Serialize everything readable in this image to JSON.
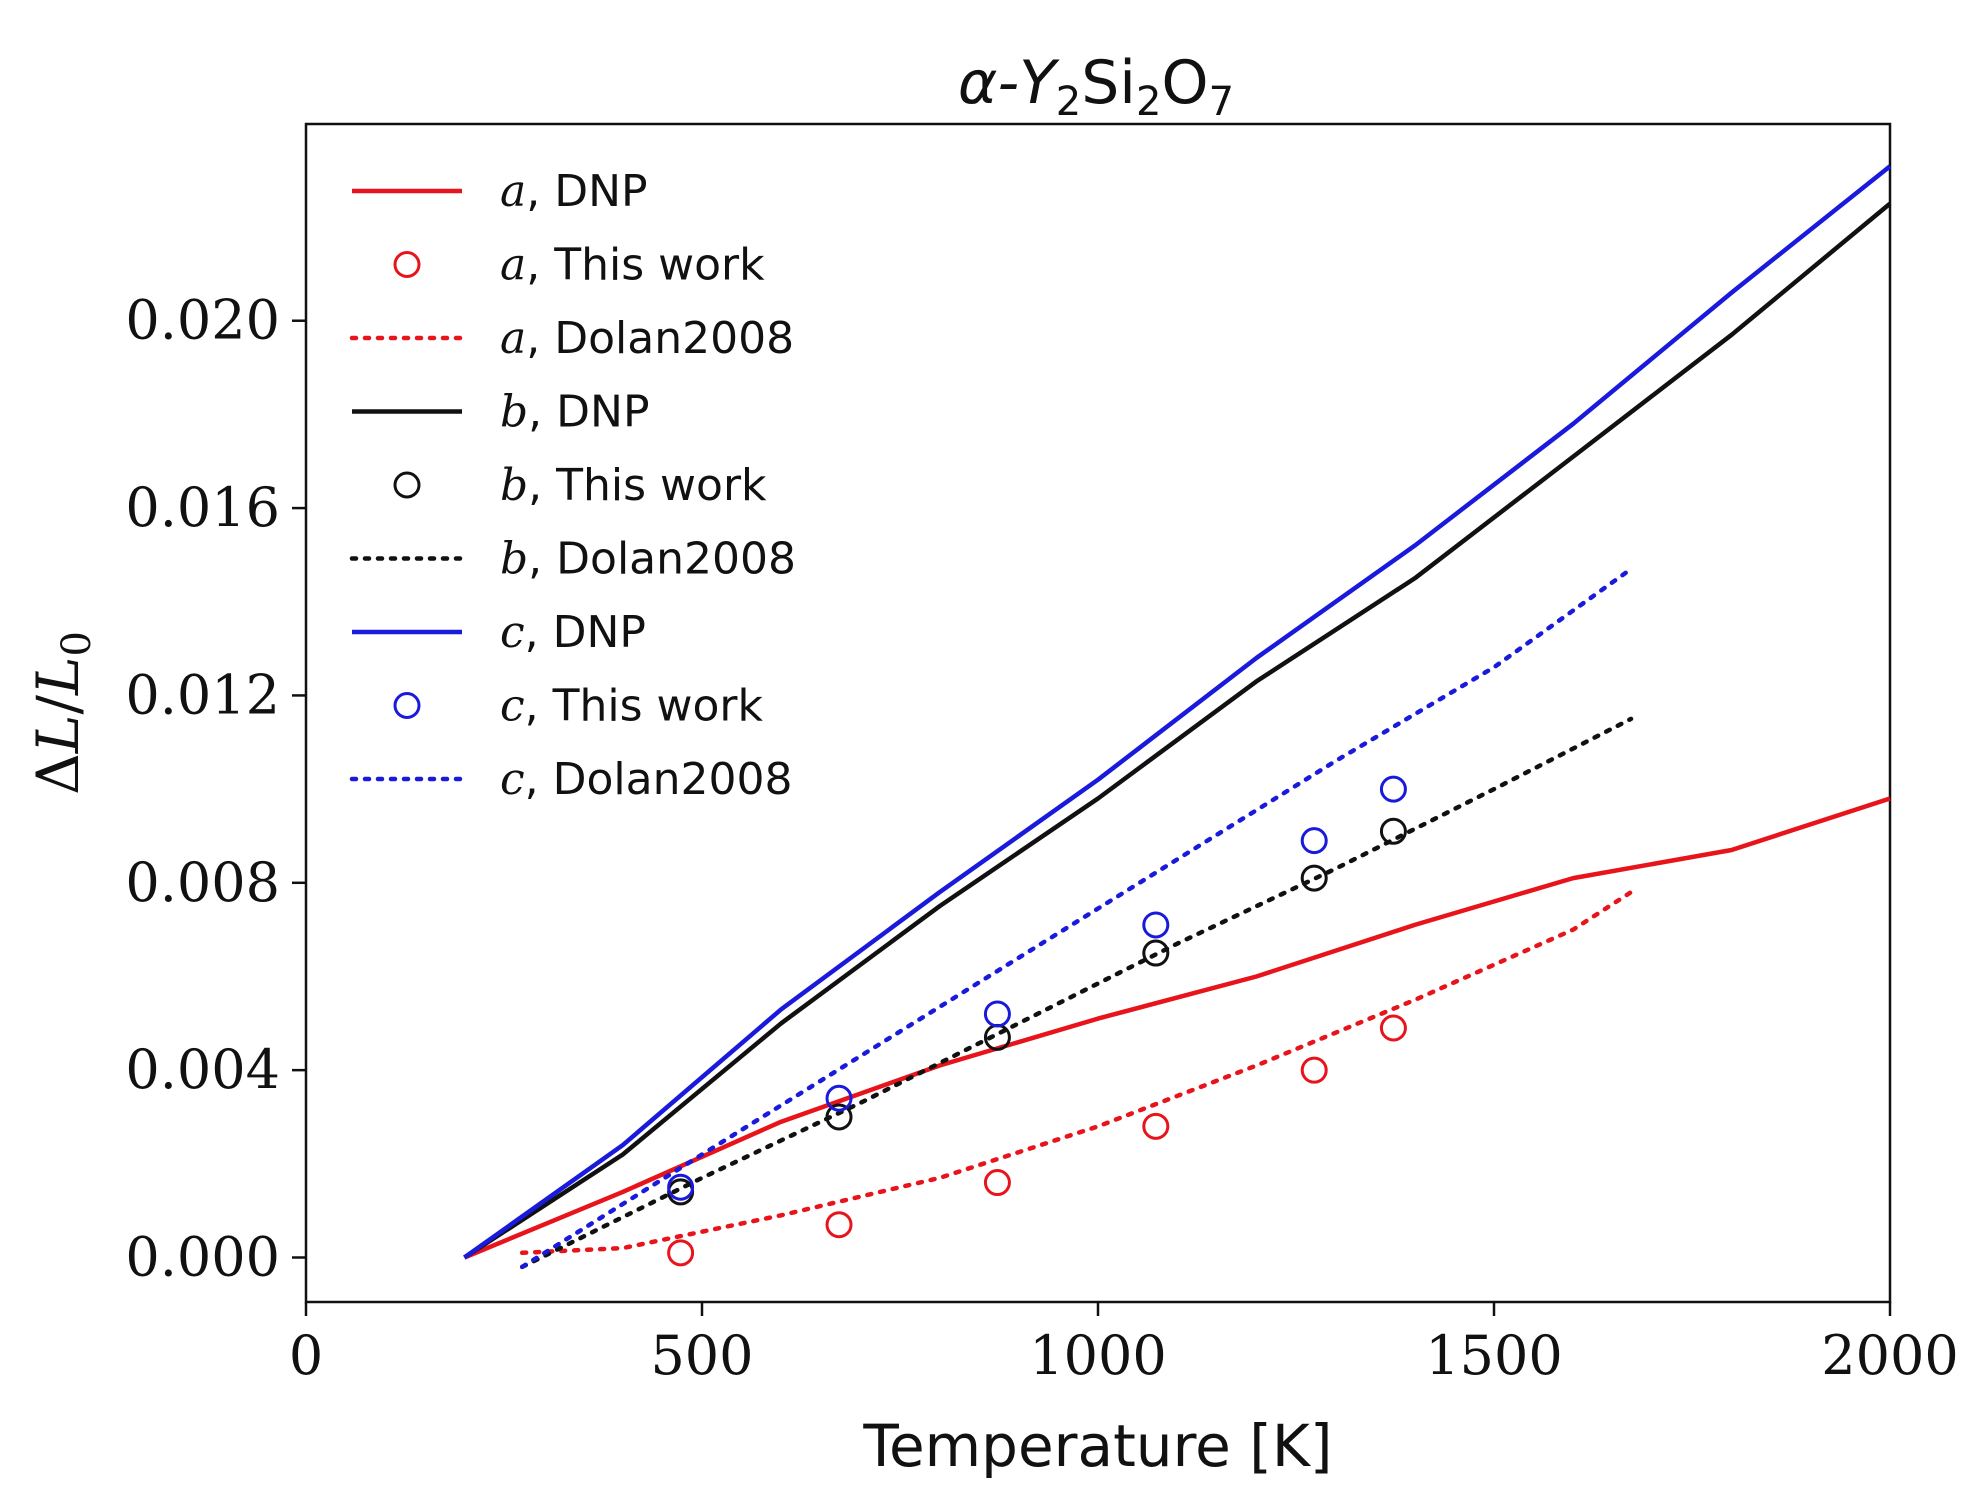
{
  "chart_data": {
    "type": "line",
    "title": {
      "prefix": "α-Y",
      "sub1": "2",
      "mid": "Si",
      "sub2": "2",
      "mid2": "O",
      "sub3": "7"
    },
    "xlabel": "Temperature [K]",
    "ylabel": {
      "delta": "Δ",
      "L": "L",
      "slash": "/",
      "L0": "L",
      "sub": "0"
    },
    "xlim": [
      0,
      2000
    ],
    "ylim": [
      -0.00095,
      0.0242
    ],
    "x_ticks": [
      {
        "value": 0,
        "label": "0"
      },
      {
        "value": 500,
        "label": "500"
      },
      {
        "value": 1000,
        "label": "1000"
      },
      {
        "value": 1500,
        "label": "1500"
      },
      {
        "value": 2000,
        "label": "2000"
      }
    ],
    "y_ticks": [
      {
        "value": 0.0,
        "label": "0.000"
      },
      {
        "value": 0.004,
        "label": "0.004"
      },
      {
        "value": 0.008,
        "label": "0.008"
      },
      {
        "value": 0.012,
        "label": "0.012"
      },
      {
        "value": 0.016,
        "label": "0.016"
      },
      {
        "value": 0.02,
        "label": "0.020"
      }
    ],
    "grid": false,
    "legend_position": "top-left",
    "series": [
      {
        "id": "a-dnp",
        "axis": "a",
        "source": ", DNP",
        "kind": "solid",
        "color": "#e8141c",
        "x": [
          200,
          400,
          600,
          800,
          1000,
          1200,
          1400,
          1600,
          1800,
          2000
        ],
        "y": [
          0.0,
          0.0014,
          0.0029,
          0.0041,
          0.0051,
          0.006,
          0.0071,
          0.0081,
          0.0087,
          0.0098
        ]
      },
      {
        "id": "a-this",
        "axis": "a",
        "source": ", This work",
        "kind": "marker",
        "color": "#e8141c",
        "x": [
          473,
          673,
          873,
          1073,
          1273,
          1373
        ],
        "y": [
          0.0001,
          0.0007,
          0.0016,
          0.0028,
          0.004,
          0.0049
        ]
      },
      {
        "id": "a-dolan",
        "axis": "a",
        "source": ", Dolan2008",
        "kind": "dotted",
        "color": "#e8141c",
        "x": [
          273,
          400,
          600,
          800,
          1000,
          1200,
          1400,
          1600,
          1673
        ],
        "y": [
          0.0001,
          0.0002,
          0.0009,
          0.0017,
          0.0028,
          0.0041,
          0.0055,
          0.007,
          0.0078
        ]
      },
      {
        "id": "b-dnp",
        "axis": "b",
        "source": ", DNP",
        "kind": "solid",
        "color": "#111111",
        "x": [
          200,
          400,
          600,
          800,
          1000,
          1200,
          1400,
          1600,
          1800,
          2000
        ],
        "y": [
          0.0,
          0.0022,
          0.005,
          0.0075,
          0.0098,
          0.0123,
          0.0145,
          0.0171,
          0.0197,
          0.0225
        ]
      },
      {
        "id": "b-this",
        "axis": "b",
        "source": ", This work",
        "kind": "marker",
        "color": "#111111",
        "x": [
          473,
          673,
          873,
          1073,
          1273,
          1373
        ],
        "y": [
          0.0014,
          0.003,
          0.0047,
          0.0065,
          0.0081,
          0.0091
        ]
      },
      {
        "id": "b-dolan",
        "axis": "b",
        "source": ", Dolan2008",
        "kind": "dotted",
        "color": "#111111",
        "x": [
          273,
          500,
          700,
          900,
          1100,
          1300,
          1500,
          1673
        ],
        "y": [
          -0.0002,
          0.0017,
          0.0033,
          0.005,
          0.0067,
          0.0083,
          0.01,
          0.0115
        ]
      },
      {
        "id": "c-dnp",
        "axis": "c",
        "source": ", DNP",
        "kind": "solid",
        "color": "#1a1adc",
        "x": [
          200,
          400,
          600,
          800,
          1000,
          1200,
          1400,
          1600,
          1800,
          2000
        ],
        "y": [
          0.0,
          0.0024,
          0.0053,
          0.0078,
          0.0102,
          0.0128,
          0.0152,
          0.0178,
          0.0206,
          0.0233
        ]
      },
      {
        "id": "c-this",
        "axis": "c",
        "source": ", This work",
        "kind": "marker",
        "color": "#1a1adc",
        "x": [
          473,
          673,
          873,
          1073,
          1273,
          1373
        ],
        "y": [
          0.0015,
          0.0034,
          0.0052,
          0.0071,
          0.0089,
          0.01
        ]
      },
      {
        "id": "c-dolan",
        "axis": "c",
        "source": ", Dolan2008",
        "kind": "dotted",
        "color": "#1a1adc",
        "x": [
          273,
          500,
          700,
          900,
          1100,
          1300,
          1500,
          1673
        ],
        "y": [
          -0.0002,
          0.0022,
          0.0043,
          0.0064,
          0.0085,
          0.0106,
          0.0126,
          0.0147
        ]
      }
    ]
  }
}
